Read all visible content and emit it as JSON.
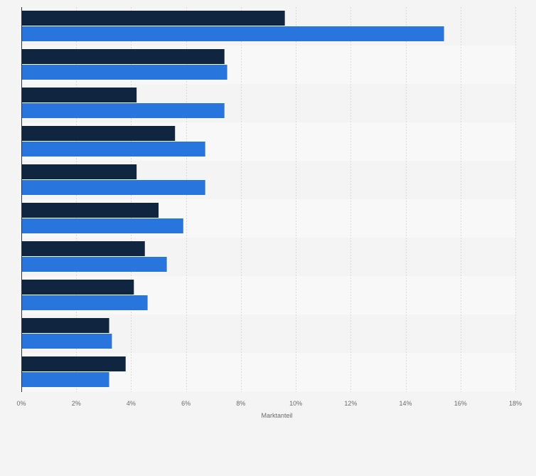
{
  "chart_data": {
    "type": "bar",
    "orientation": "horizontal",
    "title": "",
    "xlabel": "Marktanteil",
    "ylabel": "",
    "xlim": [
      0,
      18
    ],
    "x_ticks": [
      0,
      2,
      4,
      6,
      8,
      10,
      12,
      14,
      16,
      18
    ],
    "x_tick_labels": [
      "0%",
      "2%",
      "4%",
      "6%",
      "8%",
      "10%",
      "12%",
      "14%",
      "16%",
      "18%"
    ],
    "grid": true,
    "legend": "none",
    "categories": [
      "",
      "",
      "",
      "",
      "",
      "",
      "",
      "",
      "",
      ""
    ],
    "series": [
      {
        "color": "#0f2540",
        "values": [
          9.6,
          7.4,
          4.2,
          5.6,
          4.2,
          5.0,
          4.5,
          4.1,
          3.2,
          3.8
        ]
      },
      {
        "color": "#2876dd",
        "values": [
          15.4,
          7.5,
          7.4,
          6.7,
          6.7,
          5.9,
          5.3,
          4.6,
          3.3,
          3.2
        ]
      }
    ],
    "band_colors": [
      "#f4f4f5",
      "#f8f8f9"
    ],
    "grid_color": "#d9d9d9"
  }
}
